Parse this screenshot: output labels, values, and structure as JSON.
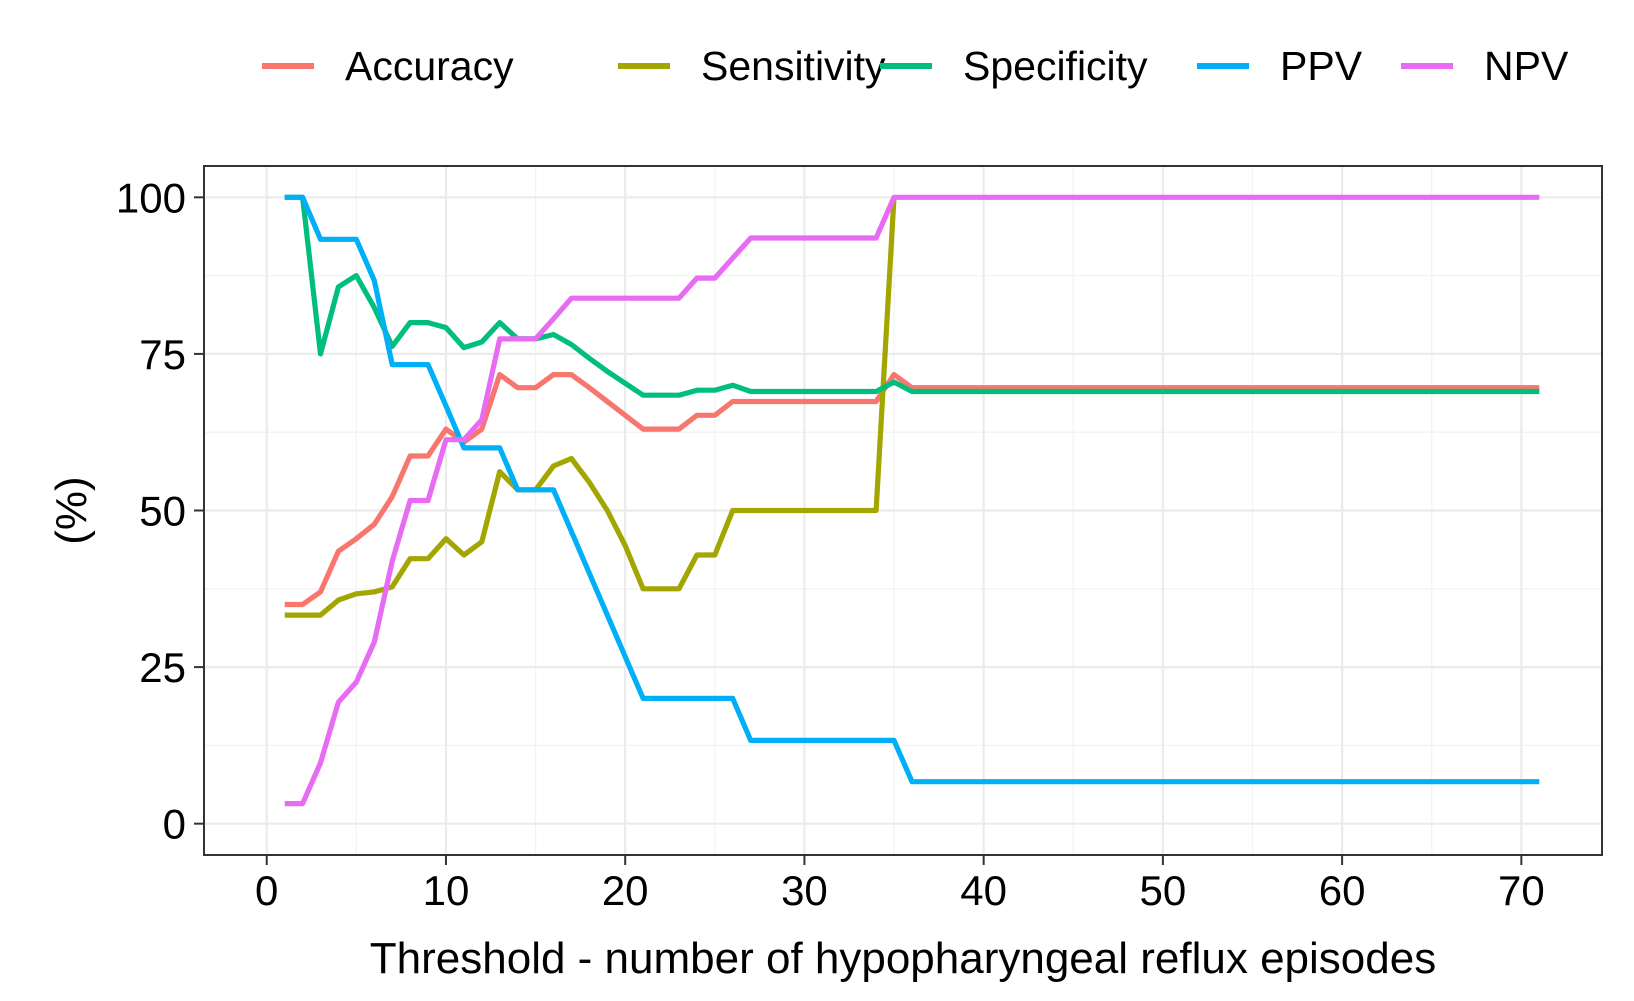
{
  "chart_data": {
    "type": "line",
    "title": "",
    "xlabel": "Threshold - number of hypopharyngeal reflux episodes",
    "ylabel": "(%)",
    "xlim": [
      -3.5,
      74.5
    ],
    "ylim": [
      -5,
      105
    ],
    "x_ticks": [
      0,
      10,
      20,
      30,
      40,
      50,
      60,
      70
    ],
    "y_ticks": [
      0,
      25,
      50,
      75,
      100
    ],
    "grid": true,
    "legend_position": "top",
    "series": [
      {
        "name": "Accuracy",
        "color": "#F8766D",
        "points": [
          [
            1,
            35
          ],
          [
            2,
            35
          ],
          [
            3,
            37
          ],
          [
            4,
            43.5
          ],
          [
            5,
            45.5
          ],
          [
            6,
            47.8
          ],
          [
            7,
            52.2
          ],
          [
            8,
            58.7
          ],
          [
            9,
            58.7
          ],
          [
            10,
            63
          ],
          [
            11,
            60.9
          ],
          [
            12,
            63
          ],
          [
            13,
            71.7
          ],
          [
            14,
            69.6
          ],
          [
            15,
            69.6
          ],
          [
            16,
            71.7
          ],
          [
            17,
            71.7
          ],
          [
            18,
            69.6
          ],
          [
            19,
            67.4
          ],
          [
            20,
            65.2
          ],
          [
            21,
            63
          ],
          [
            22,
            63
          ],
          [
            23,
            63
          ],
          [
            24,
            65.2
          ],
          [
            25,
            65.2
          ],
          [
            26,
            67.4
          ],
          [
            34,
            67.4
          ],
          [
            35,
            71.7
          ],
          [
            36,
            69.6
          ],
          [
            71,
            69.6
          ]
        ]
      },
      {
        "name": "Sensitivity",
        "color": "#A3A500",
        "points": [
          [
            1,
            33.3
          ],
          [
            2,
            33.3
          ],
          [
            3,
            33.3
          ],
          [
            4,
            35.7
          ],
          [
            5,
            36.7
          ],
          [
            6,
            37
          ],
          [
            7,
            37.8
          ],
          [
            8,
            42.3
          ],
          [
            9,
            42.3
          ],
          [
            10,
            45.5
          ],
          [
            11,
            42.9
          ],
          [
            12,
            45
          ],
          [
            13,
            56.2
          ],
          [
            14,
            53.3
          ],
          [
            15,
            53.3
          ],
          [
            16,
            57.1
          ],
          [
            17,
            58.3
          ],
          [
            18,
            54.5
          ],
          [
            19,
            50
          ],
          [
            20,
            44.4
          ],
          [
            21,
            37.5
          ],
          [
            22,
            37.5
          ],
          [
            23,
            37.5
          ],
          [
            24,
            42.9
          ],
          [
            25,
            42.9
          ],
          [
            26,
            50
          ],
          [
            34,
            50
          ],
          [
            35,
            100
          ]
        ]
      },
      {
        "name": "Specificity",
        "color": "#00BF7D",
        "points": [
          [
            1,
            100
          ],
          [
            2,
            100
          ],
          [
            3,
            75
          ],
          [
            4,
            85.7
          ],
          [
            5,
            87.5
          ],
          [
            6,
            82.4
          ],
          [
            7,
            76.2
          ],
          [
            8,
            80
          ],
          [
            9,
            80
          ],
          [
            10,
            79.2
          ],
          [
            11,
            76
          ],
          [
            12,
            76.9
          ],
          [
            13,
            80
          ],
          [
            14,
            77.4
          ],
          [
            15,
            77.4
          ],
          [
            16,
            78.1
          ],
          [
            17,
            76.5
          ],
          [
            18,
            74.3
          ],
          [
            19,
            72.2
          ],
          [
            20,
            70.3
          ],
          [
            21,
            68.4
          ],
          [
            22,
            68.4
          ],
          [
            23,
            68.4
          ],
          [
            24,
            69.2
          ],
          [
            25,
            69.2
          ],
          [
            26,
            70
          ],
          [
            27,
            69
          ],
          [
            34,
            69
          ],
          [
            35,
            70.5
          ],
          [
            36,
            69
          ],
          [
            71,
            69
          ]
        ]
      },
      {
        "name": "PPV",
        "color": "#00B0F6",
        "points": [
          [
            1,
            100
          ],
          [
            2,
            100
          ],
          [
            3,
            93.3
          ],
          [
            4,
            93.3
          ],
          [
            5,
            93.3
          ],
          [
            6,
            86.7
          ],
          [
            7,
            73.3
          ],
          [
            8,
            73.3
          ],
          [
            9,
            73.3
          ],
          [
            10,
            66.7
          ],
          [
            11,
            60
          ],
          [
            12,
            60
          ],
          [
            13,
            60
          ],
          [
            14,
            53.3
          ],
          [
            15,
            53.3
          ],
          [
            16,
            53.3
          ],
          [
            21,
            20
          ],
          [
            26,
            20
          ],
          [
            27,
            13.3
          ],
          [
            35,
            13.3
          ],
          [
            36,
            6.7
          ],
          [
            71,
            6.7
          ]
        ]
      },
      {
        "name": "NPV",
        "color": "#E76BF3",
        "points": [
          [
            1,
            3.2
          ],
          [
            2,
            3.2
          ],
          [
            3,
            9.7
          ],
          [
            4,
            19.4
          ],
          [
            5,
            22.6
          ],
          [
            6,
            29
          ],
          [
            7,
            41.9
          ],
          [
            8,
            51.6
          ],
          [
            9,
            51.6
          ],
          [
            10,
            61.3
          ],
          [
            11,
            61.3
          ],
          [
            12,
            64.5
          ],
          [
            13,
            77.4
          ],
          [
            14,
            77.4
          ],
          [
            15,
            77.4
          ],
          [
            16,
            80.6
          ],
          [
            17,
            83.9
          ],
          [
            23,
            83.9
          ],
          [
            24,
            87.1
          ],
          [
            25,
            87.1
          ],
          [
            26,
            90.3
          ],
          [
            27,
            93.5
          ],
          [
            34,
            93.5
          ],
          [
            35,
            100
          ],
          [
            71,
            100
          ]
        ]
      }
    ]
  }
}
